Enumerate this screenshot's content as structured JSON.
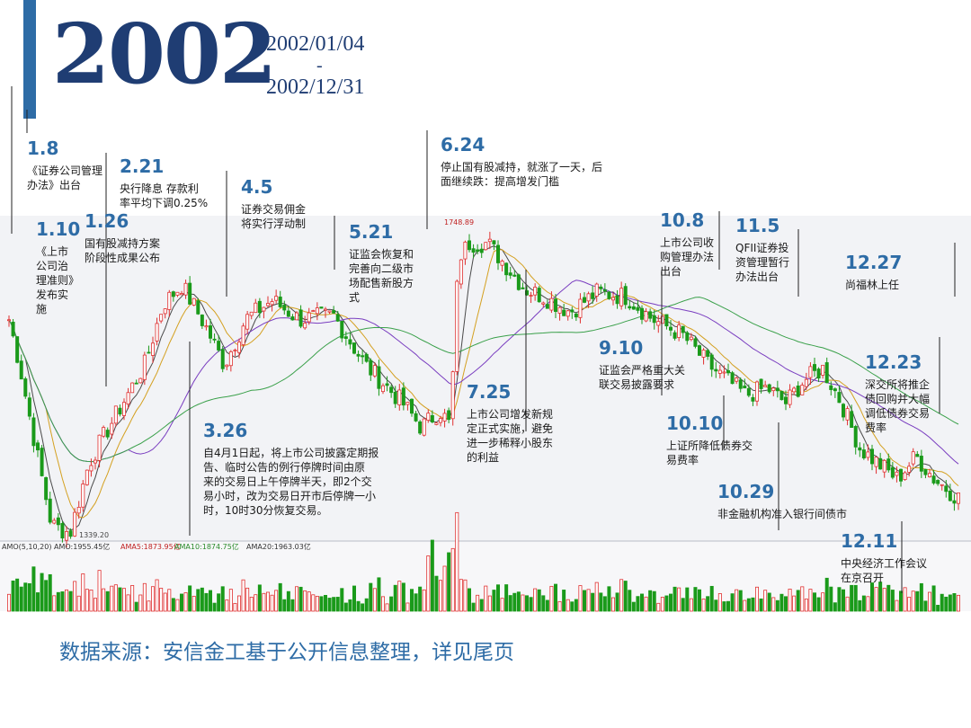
{
  "header": {
    "year": "2002",
    "start_date": "2002/01/04",
    "dash": "-",
    "end_date": "2002/12/31"
  },
  "colors": {
    "title": "#1f3d73",
    "accent": "#2e6ca6",
    "up": "#e03030",
    "down": "#1a9a1a",
    "date_label": "#2e6ca6"
  },
  "source_note": "数据来源：安信金工基于公开信息整理，详见尾页",
  "chart_data": {
    "type": "candlestick",
    "high_label": "1748.89",
    "low_label": "1339.20",
    "indicator_labels": [
      "AMO(5,10,20)",
      "AMO:1955.45亿",
      "AMA5:1873.95亿",
      "AMA10:1874.75亿",
      "AMA20:1963.03亿"
    ],
    "price_anchors": [
      [
        "01-04",
        1650
      ],
      [
        "01-10",
        1560
      ],
      [
        "01-15",
        1470
      ],
      [
        "01-22",
        1350
      ],
      [
        "01-29",
        1339
      ],
      [
        "02-05",
        1430
      ],
      [
        "02-08",
        1450
      ],
      [
        "02-26",
        1560
      ],
      [
        "03-05",
        1640
      ],
      [
        "03-12",
        1665
      ],
      [
        "03-21",
        1610
      ],
      [
        "03-28",
        1560
      ],
      [
        "04-05",
        1620
      ],
      [
        "04-15",
        1645
      ],
      [
        "04-25",
        1620
      ],
      [
        "05-08",
        1625
      ],
      [
        "05-20",
        1560
      ],
      [
        "06-03",
        1510
      ],
      [
        "06-10",
        1478
      ],
      [
        "06-17",
        1500
      ],
      [
        "06-21",
        1480
      ],
      [
        "06-24",
        1700
      ],
      [
        "06-28",
        1720
      ],
      [
        "07-05",
        1720
      ],
      [
        "07-12",
        1690
      ],
      [
        "07-19",
        1660
      ],
      [
        "07-26",
        1650
      ],
      [
        "08-05",
        1630
      ],
      [
        "08-15",
        1655
      ],
      [
        "08-26",
        1650
      ],
      [
        "09-05",
        1620
      ],
      [
        "09-16",
        1600
      ],
      [
        "09-26",
        1560
      ],
      [
        "10-10",
        1520
      ],
      [
        "10-18",
        1530
      ],
      [
        "10-25",
        1510
      ],
      [
        "11-01",
        1540
      ],
      [
        "11-08",
        1555
      ],
      [
        "11-15",
        1510
      ],
      [
        "11-22",
        1450
      ],
      [
        "11-29",
        1430
      ],
      [
        "12-06",
        1410
      ],
      [
        "12-13",
        1440
      ],
      [
        "12-20",
        1410
      ],
      [
        "12-31",
        1380
      ]
    ],
    "events": [
      {
        "date": "1.8",
        "x": "01-08",
        "text": [
          "《证券公司管理",
          "办法》出台"
        ]
      },
      {
        "date": "1.10",
        "x": "01-10",
        "text": [
          "《上市",
          "公司治",
          "理准则》",
          "发布实",
          "施"
        ]
      },
      {
        "date": "1.26",
        "x": "01-26",
        "text": [
          "国有股减持方案",
          "阶段性成果公布"
        ]
      },
      {
        "date": "2.21",
        "x": "02-21",
        "text": [
          "央行降息 存款利",
          "率平均下调0.25%"
        ]
      },
      {
        "date": "3.26",
        "x": "03-26",
        "text": [
          "自4月1日起，将上市公司披露定期报",
          "告、临时公告的例行停牌时间由原",
          "来的交易日上午停牌半天，即2个交",
          "易小时，改为交易日开市后停牌一小",
          "时，10时30分恢复交易。"
        ]
      },
      {
        "date": "4.5",
        "x": "04-05",
        "text": [
          "证券交易佣金",
          "将实行浮动制"
        ]
      },
      {
        "date": "5.21",
        "x": "05-21",
        "text": [
          "证监会恢复和",
          "完善向二级市",
          "场配售新股方",
          "式"
        ]
      },
      {
        "date": "6.24",
        "x": "06-24",
        "text": [
          "停止国有股减持，就涨了一天，后",
          "面继续跌：提高增发门槛"
        ]
      },
      {
        "date": "7.25",
        "x": "07-25",
        "text": [
          "上市公司增发新规",
          "定正式实施，避免",
          "进一步稀释小股东",
          "的利益"
        ]
      },
      {
        "date": "9.10",
        "x": "09-10",
        "text": [
          "证监会严格重大关",
          "联交易披露要求"
        ]
      },
      {
        "date": "10.8",
        "x": "10-08",
        "text": [
          "上市公司收",
          "购管理办法",
          "出台"
        ]
      },
      {
        "date": "10.10",
        "x": "10-10",
        "text": [
          "上证所降低债券交",
          "易费率"
        ]
      },
      {
        "date": "10.29",
        "x": "10-29",
        "text": [
          "非金融机构准入银行间债市"
        ]
      },
      {
        "date": "11.5",
        "x": "11-05",
        "text": [
          "QFII证券投",
          "资管理暂行",
          "办法出台"
        ]
      },
      {
        "date": "12.11",
        "x": "12-11",
        "text": [
          "中央经济工作会议",
          "在京召开"
        ]
      },
      {
        "date": "12.23",
        "x": "12-23",
        "text": [
          "深交所将推企",
          "债回购并大幅",
          "调低债券交易",
          "费率"
        ]
      },
      {
        "date": "12.27",
        "x": "12-27",
        "text": [
          "尚福林上任"
        ]
      }
    ]
  }
}
